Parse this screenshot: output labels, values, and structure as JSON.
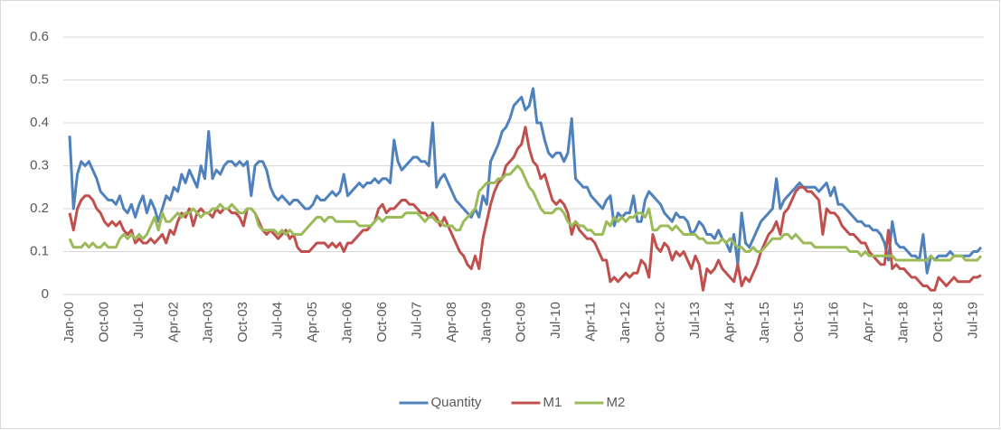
{
  "chart_data": {
    "type": "line",
    "categories": [
      "Jan-00",
      null,
      null,
      null,
      null,
      null,
      null,
      null,
      null,
      "Oct-00",
      null,
      null,
      null,
      null,
      null,
      null,
      null,
      null,
      "Jul-01",
      null,
      null,
      null,
      null,
      null,
      null,
      null,
      null,
      "Apr-02",
      null,
      null,
      null,
      null,
      null,
      null,
      null,
      null,
      "Jan-03",
      null,
      null,
      null,
      null,
      null,
      null,
      null,
      null,
      "Oct-03",
      null,
      null,
      null,
      null,
      null,
      null,
      null,
      null,
      "Jul-04",
      null,
      null,
      null,
      null,
      null,
      null,
      null,
      null,
      "Apr-05",
      null,
      null,
      null,
      null,
      null,
      null,
      null,
      null,
      "Jan-06",
      null,
      null,
      null,
      null,
      null,
      null,
      null,
      null,
      "Oct-06",
      null,
      null,
      null,
      null,
      null,
      null,
      null,
      null,
      "Jul-07",
      null,
      null,
      null,
      null,
      null,
      null,
      null,
      null,
      "Apr-08",
      null,
      null,
      null,
      null,
      null,
      null,
      null,
      null,
      "Jan-09",
      null,
      null,
      null,
      null,
      null,
      null,
      null,
      null,
      "Oct-09",
      null,
      null,
      null,
      null,
      null,
      null,
      null,
      null,
      "Jul-10",
      null,
      null,
      null,
      null,
      null,
      null,
      null,
      null,
      "Apr-11",
      null,
      null,
      null,
      null,
      null,
      null,
      null,
      null,
      "Jan-12",
      null,
      null,
      null,
      null,
      null,
      null,
      null,
      null,
      "Oct-12",
      null,
      null,
      null,
      null,
      null,
      null,
      null,
      null,
      "Jul-13",
      null,
      null,
      null,
      null,
      null,
      null,
      null,
      null,
      "Apr-14",
      null,
      null,
      null,
      null,
      null,
      null,
      null,
      null,
      "Jan-15",
      null,
      null,
      null,
      null,
      null,
      null,
      null,
      null,
      "Oct-15",
      null,
      null,
      null,
      null,
      null,
      null,
      null,
      null,
      "Jul-16",
      null,
      null,
      null,
      null,
      null,
      null,
      null,
      null,
      "Apr-17",
      null,
      null,
      null,
      null,
      null,
      null,
      null,
      null,
      "Jan-18",
      null,
      null,
      null,
      null,
      null,
      null,
      null,
      null,
      "Oct-18",
      null,
      null,
      null,
      null,
      null,
      null,
      null,
      null,
      "Jul-19",
      null,
      null
    ],
    "series": [
      {
        "name": "Quantity",
        "color": "#4f81bd",
        "values": [
          0.37,
          0.2,
          0.28,
          0.31,
          0.3,
          0.31,
          0.29,
          0.27,
          0.24,
          0.23,
          0.22,
          0.22,
          0.21,
          0.23,
          0.2,
          0.19,
          0.21,
          0.18,
          0.21,
          0.23,
          0.19,
          0.22,
          0.2,
          0.17,
          0.2,
          0.23,
          0.22,
          0.25,
          0.24,
          0.28,
          0.26,
          0.29,
          0.27,
          0.25,
          0.3,
          0.27,
          0.38,
          0.27,
          0.29,
          0.28,
          0.3,
          0.31,
          0.31,
          0.3,
          0.31,
          0.3,
          0.31,
          0.23,
          0.3,
          0.31,
          0.31,
          0.29,
          0.25,
          0.23,
          0.22,
          0.23,
          0.22,
          0.21,
          0.22,
          0.22,
          0.21,
          0.2,
          0.2,
          0.21,
          0.23,
          0.22,
          0.22,
          0.23,
          0.24,
          0.23,
          0.24,
          0.28,
          0.23,
          0.24,
          0.25,
          0.26,
          0.25,
          0.26,
          0.26,
          0.27,
          0.26,
          0.27,
          0.27,
          0.26,
          0.36,
          0.31,
          0.29,
          0.3,
          0.31,
          0.32,
          0.32,
          0.31,
          0.31,
          0.3,
          0.4,
          0.25,
          0.27,
          0.28,
          0.26,
          0.24,
          0.22,
          0.21,
          0.2,
          0.19,
          0.18,
          0.2,
          0.18,
          0.23,
          0.21,
          0.31,
          0.33,
          0.35,
          0.38,
          0.39,
          0.41,
          0.44,
          0.45,
          0.46,
          0.43,
          0.44,
          0.48,
          0.4,
          0.4,
          0.36,
          0.33,
          0.32,
          0.33,
          0.33,
          0.31,
          0.33,
          0.41,
          0.27,
          0.26,
          0.25,
          0.25,
          0.23,
          0.22,
          0.21,
          0.2,
          0.22,
          0.23,
          0.16,
          0.19,
          0.18,
          0.19,
          0.19,
          0.23,
          0.17,
          0.17,
          0.22,
          0.24,
          0.23,
          0.22,
          0.21,
          0.19,
          0.18,
          0.17,
          0.19,
          0.18,
          0.18,
          0.17,
          0.14,
          0.15,
          0.17,
          0.16,
          0.14,
          0.14,
          0.13,
          0.15,
          0.13,
          0.12,
          0.1,
          0.14,
          0.07,
          0.19,
          0.12,
          0.11,
          0.13,
          0.15,
          0.17,
          0.18,
          0.19,
          0.2,
          0.27,
          0.2,
          0.22,
          0.23,
          0.24,
          0.25,
          0.26,
          0.25,
          0.25,
          0.25,
          0.25,
          0.24,
          0.25,
          0.26,
          0.23,
          0.25,
          0.21,
          0.21,
          0.2,
          0.19,
          0.18,
          0.17,
          0.17,
          0.16,
          0.16,
          0.15,
          0.15,
          0.14,
          0.12,
          0.08,
          0.17,
          0.12,
          0.11,
          0.11,
          0.1,
          0.09,
          0.09,
          0.08,
          0.14,
          0.05,
          0.09,
          0.08,
          0.09,
          0.09,
          0.09,
          0.1,
          0.09,
          0.09,
          0.09,
          0.09,
          0.09,
          0.1,
          0.1,
          0.11
        ]
      },
      {
        "name": "M1",
        "color": "#c0504d",
        "values": [
          0.19,
          0.15,
          0.2,
          0.22,
          0.23,
          0.23,
          0.22,
          0.2,
          0.19,
          0.17,
          0.16,
          0.17,
          0.16,
          0.17,
          0.15,
          0.14,
          0.15,
          0.12,
          0.13,
          0.12,
          0.12,
          0.13,
          0.12,
          0.13,
          0.14,
          0.12,
          0.15,
          0.14,
          0.17,
          0.19,
          0.18,
          0.2,
          0.16,
          0.19,
          0.2,
          0.19,
          0.19,
          0.18,
          0.2,
          0.19,
          0.2,
          0.2,
          0.19,
          0.19,
          0.18,
          0.16,
          0.2,
          0.2,
          0.19,
          0.17,
          0.15,
          0.14,
          0.15,
          0.14,
          0.13,
          0.14,
          0.15,
          0.13,
          0.14,
          0.11,
          0.1,
          0.1,
          0.1,
          0.11,
          0.12,
          0.12,
          0.12,
          0.11,
          0.12,
          0.11,
          0.12,
          0.1,
          0.12,
          0.12,
          0.13,
          0.14,
          0.15,
          0.15,
          0.16,
          0.17,
          0.2,
          0.21,
          0.19,
          0.2,
          0.2,
          0.21,
          0.22,
          0.22,
          0.21,
          0.21,
          0.2,
          0.19,
          0.19,
          0.18,
          0.19,
          0.18,
          0.16,
          0.18,
          0.16,
          0.14,
          0.12,
          0.1,
          0.09,
          0.07,
          0.06,
          0.09,
          0.06,
          0.13,
          0.17,
          0.21,
          0.24,
          0.26,
          0.27,
          0.3,
          0.31,
          0.32,
          0.34,
          0.35,
          0.39,
          0.34,
          0.31,
          0.3,
          0.27,
          0.28,
          0.25,
          0.22,
          0.21,
          0.22,
          0.21,
          0.19,
          0.14,
          0.17,
          0.15,
          0.14,
          0.13,
          0.13,
          0.12,
          0.1,
          0.08,
          0.08,
          0.03,
          0.04,
          0.03,
          0.04,
          0.05,
          0.04,
          0.05,
          0.05,
          0.08,
          0.07,
          0.04,
          0.14,
          0.11,
          0.1,
          0.12,
          0.11,
          0.08,
          0.1,
          0.09,
          0.1,
          0.08,
          0.06,
          0.09,
          0.07,
          0.01,
          0.06,
          0.05,
          0.06,
          0.08,
          0.06,
          0.05,
          0.04,
          0.03,
          0.07,
          0.02,
          0.04,
          0.03,
          0.05,
          0.07,
          0.1,
          0.12,
          0.14,
          0.15,
          0.17,
          0.14,
          0.19,
          0.2,
          0.22,
          0.24,
          0.25,
          0.25,
          0.24,
          0.24,
          0.23,
          0.22,
          0.14,
          0.2,
          0.19,
          0.19,
          0.18,
          0.16,
          0.15,
          0.14,
          0.14,
          0.13,
          0.12,
          0.12,
          0.1,
          0.09,
          0.08,
          0.07,
          0.07,
          0.15,
          0.06,
          0.07,
          0.06,
          0.06,
          0.05,
          0.04,
          0.04,
          0.03,
          0.02,
          0.02,
          0.01,
          0.01,
          0.04,
          0.03,
          0.02,
          0.03,
          0.04,
          0.03,
          0.03,
          0.03,
          0.03,
          0.04,
          0.04,
          0.045
        ]
      },
      {
        "name": "M2",
        "color": "#9bbb59",
        "values": [
          0.13,
          0.11,
          0.11,
          0.11,
          0.12,
          0.11,
          0.12,
          0.11,
          0.11,
          0.12,
          0.11,
          0.11,
          0.11,
          0.13,
          0.14,
          0.13,
          0.14,
          0.13,
          0.14,
          0.13,
          0.14,
          0.16,
          0.18,
          0.15,
          0.19,
          0.17,
          0.17,
          0.18,
          0.19,
          0.18,
          0.19,
          0.19,
          0.2,
          0.19,
          0.18,
          0.19,
          0.19,
          0.2,
          0.2,
          0.21,
          0.2,
          0.2,
          0.21,
          0.2,
          0.19,
          0.19,
          0.2,
          0.2,
          0.19,
          0.16,
          0.15,
          0.15,
          0.15,
          0.15,
          0.14,
          0.15,
          0.14,
          0.15,
          0.14,
          0.14,
          0.14,
          0.15,
          0.16,
          0.17,
          0.18,
          0.18,
          0.17,
          0.18,
          0.18,
          0.17,
          0.17,
          0.17,
          0.17,
          0.17,
          0.17,
          0.16,
          0.16,
          0.16,
          0.16,
          0.17,
          0.18,
          0.17,
          0.18,
          0.18,
          0.18,
          0.18,
          0.18,
          0.19,
          0.19,
          0.19,
          0.19,
          0.18,
          0.17,
          0.18,
          0.18,
          0.17,
          0.17,
          0.16,
          0.16,
          0.16,
          0.15,
          0.15,
          0.17,
          0.18,
          0.19,
          0.2,
          0.24,
          0.25,
          0.26,
          0.26,
          0.26,
          0.27,
          0.27,
          0.28,
          0.28,
          0.29,
          0.3,
          0.29,
          0.27,
          0.25,
          0.24,
          0.22,
          0.2,
          0.19,
          0.19,
          0.19,
          0.2,
          0.2,
          0.19,
          0.17,
          0.16,
          0.17,
          0.16,
          0.16,
          0.15,
          0.15,
          0.14,
          0.14,
          0.14,
          0.17,
          0.16,
          0.18,
          0.17,
          0.18,
          0.17,
          0.18,
          0.18,
          0.19,
          0.19,
          0.18,
          0.2,
          0.15,
          0.15,
          0.16,
          0.16,
          0.16,
          0.15,
          0.16,
          0.15,
          0.14,
          0.14,
          0.14,
          0.14,
          0.13,
          0.13,
          0.12,
          0.12,
          0.12,
          0.12,
          0.13,
          0.12,
          0.13,
          0.12,
          0.11,
          0.11,
          0.1,
          0.1,
          0.11,
          0.1,
          0.1,
          0.11,
          0.12,
          0.13,
          0.13,
          0.13,
          0.14,
          0.14,
          0.13,
          0.14,
          0.13,
          0.12,
          0.12,
          0.12,
          0.11,
          0.11,
          0.11,
          0.11,
          0.11,
          0.11,
          0.11,
          0.11,
          0.11,
          0.1,
          0.1,
          0.1,
          0.09,
          0.1,
          0.09,
          0.09,
          0.09,
          0.09,
          0.09,
          0.09,
          0.09,
          0.08,
          0.08,
          0.08,
          0.08,
          0.08,
          0.08,
          0.08,
          0.08,
          0.08,
          0.09,
          0.08,
          0.08,
          0.08,
          0.08,
          0.08,
          0.09,
          0.09,
          0.09,
          0.08,
          0.08,
          0.08,
          0.08,
          0.09
        ]
      }
    ],
    "ylim": [
      0,
      0.6
    ],
    "yticks": [
      0,
      0.1,
      0.2,
      0.3,
      0.4,
      0.5,
      0.6
    ],
    "grid": true,
    "legend": "bottom"
  }
}
